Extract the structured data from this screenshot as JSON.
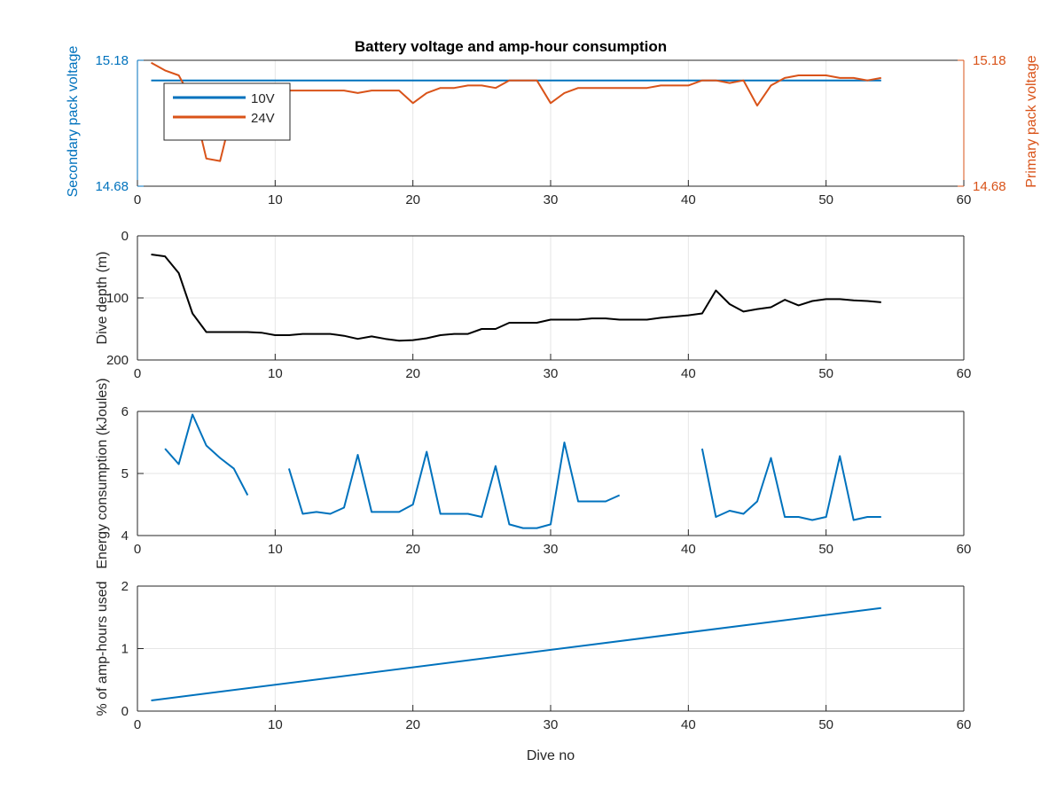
{
  "chart_data": [
    {
      "type": "line",
      "title": "Battery voltage and amp-hour consumption",
      "xlabel": "",
      "xlim": [
        0,
        60
      ],
      "xticks": [
        0,
        10,
        20,
        30,
        40,
        50,
        60
      ],
      "ylabel_left": "Secondary pack voltage",
      "ylabel_right": "Primary pack voltage",
      "ylim": [
        14.68,
        15.18
      ],
      "ytick_labels_left": [
        "14.68",
        "15.18"
      ],
      "ytick_labels_right": [
        "14.68",
        "15.18"
      ],
      "grid": true,
      "legend_position": "top-left",
      "colors": {
        "left_axis": "#0072BD",
        "right_axis": "#D95319"
      },
      "series": [
        {
          "name": "10V",
          "axis": "left",
          "color": "#0072BD",
          "x": [
            1,
            54
          ],
          "y": [
            15.1,
            15.1
          ]
        },
        {
          "name": "24V",
          "axis": "right",
          "color": "#D95319",
          "x": [
            1,
            2,
            3,
            4,
            5,
            6,
            7,
            8,
            9,
            10,
            11,
            12,
            13,
            14,
            15,
            16,
            17,
            18,
            19,
            20,
            21,
            22,
            23,
            24,
            25,
            26,
            27,
            28,
            29,
            30,
            31,
            32,
            33,
            34,
            35,
            36,
            37,
            38,
            39,
            40,
            41,
            42,
            43,
            44,
            45,
            46,
            47,
            48,
            49,
            50,
            51,
            52,
            53,
            54
          ],
          "y": [
            15.17,
            15.14,
            15.12,
            15.02,
            14.79,
            14.78,
            15.0,
            15.04,
            15.05,
            15.05,
            15.06,
            15.06,
            15.06,
            15.06,
            15.06,
            15.05,
            15.06,
            15.06,
            15.06,
            15.01,
            15.05,
            15.07,
            15.07,
            15.08,
            15.08,
            15.07,
            15.1,
            15.1,
            15.1,
            15.01,
            15.05,
            15.07,
            15.07,
            15.07,
            15.07,
            15.07,
            15.07,
            15.08,
            15.08,
            15.08,
            15.1,
            15.1,
            15.09,
            15.1,
            15.0,
            15.08,
            15.11,
            15.12,
            15.12,
            15.12,
            15.11,
            15.11,
            15.1,
            15.11
          ]
        }
      ]
    },
    {
      "type": "line",
      "title": "",
      "xlabel": "",
      "ylabel": "Dive depth (m)",
      "xlim": [
        0,
        60
      ],
      "ylim": [
        0,
        200
      ],
      "y_reversed": true,
      "xticks": [
        0,
        10,
        20,
        30,
        40,
        50,
        60
      ],
      "yticks": [
        0,
        100,
        200
      ],
      "grid": true,
      "series": [
        {
          "color": "#000000",
          "x": [
            1,
            2,
            3,
            4,
            5,
            6,
            7,
            8,
            9,
            10,
            11,
            12,
            13,
            14,
            15,
            16,
            17,
            18,
            19,
            20,
            21,
            22,
            23,
            24,
            25,
            26,
            27,
            28,
            29,
            30,
            31,
            32,
            33,
            34,
            35,
            36,
            37,
            38,
            39,
            40,
            41,
            42,
            43,
            44,
            45,
            46,
            47,
            48,
            49,
            50,
            51,
            52,
            53,
            54
          ],
          "y": [
            30,
            33,
            60,
            125,
            155,
            155,
            155,
            155,
            156,
            160,
            160,
            158,
            158,
            158,
            161,
            166,
            162,
            166,
            169,
            168,
            165,
            160,
            158,
            158,
            150,
            150,
            140,
            140,
            140,
            135,
            135,
            135,
            133,
            133,
            135,
            135,
            135,
            132,
            130,
            128,
            125,
            88,
            110,
            122,
            118,
            115,
            103,
            112,
            105,
            102,
            102,
            104,
            105,
            107
          ]
        }
      ]
    },
    {
      "type": "line",
      "title": "",
      "xlabel": "",
      "ylabel": "Energy consumption (kJoules)",
      "xlim": [
        0,
        60
      ],
      "ylim": [
        4,
        6
      ],
      "xticks": [
        0,
        10,
        20,
        30,
        40,
        50,
        60
      ],
      "yticks": [
        4,
        5,
        6
      ],
      "grid": true,
      "series": [
        {
          "color": "#0072BD",
          "x": [
            2,
            3,
            4,
            5,
            6,
            7,
            8,
            null,
            11,
            12,
            13,
            14,
            15,
            16,
            17,
            18,
            19,
            20,
            21,
            22,
            23,
            24,
            25,
            26,
            27,
            28,
            29,
            30,
            31,
            32,
            33,
            34,
            35,
            null,
            41,
            42,
            43,
            44,
            45,
            46,
            47,
            48,
            49,
            50,
            51,
            52,
            53,
            54
          ],
          "y": [
            5.4,
            5.15,
            5.95,
            5.45,
            5.25,
            5.08,
            4.65,
            null,
            5.08,
            4.35,
            4.38,
            4.35,
            4.45,
            5.3,
            4.38,
            4.38,
            4.38,
            4.5,
            5.35,
            4.35,
            4.35,
            4.35,
            4.3,
            5.12,
            4.18,
            4.12,
            4.12,
            4.18,
            5.5,
            4.55,
            4.55,
            4.55,
            4.65,
            null,
            5.4,
            4.3,
            4.4,
            4.35,
            4.55,
            5.25,
            4.3,
            4.3,
            4.25,
            4.3,
            5.28,
            4.25,
            4.3,
            4.3
          ]
        }
      ]
    },
    {
      "type": "line",
      "title": "",
      "xlabel": "Dive no",
      "ylabel": "% of amp-hours used",
      "xlim": [
        0,
        60
      ],
      "ylim": [
        0,
        2
      ],
      "xticks": [
        0,
        10,
        20,
        30,
        40,
        50,
        60
      ],
      "yticks": [
        0,
        1,
        2
      ],
      "grid": true,
      "series": [
        {
          "color": "#0072BD",
          "x": [
            1,
            54
          ],
          "y": [
            0.17,
            1.65
          ]
        }
      ]
    }
  ]
}
